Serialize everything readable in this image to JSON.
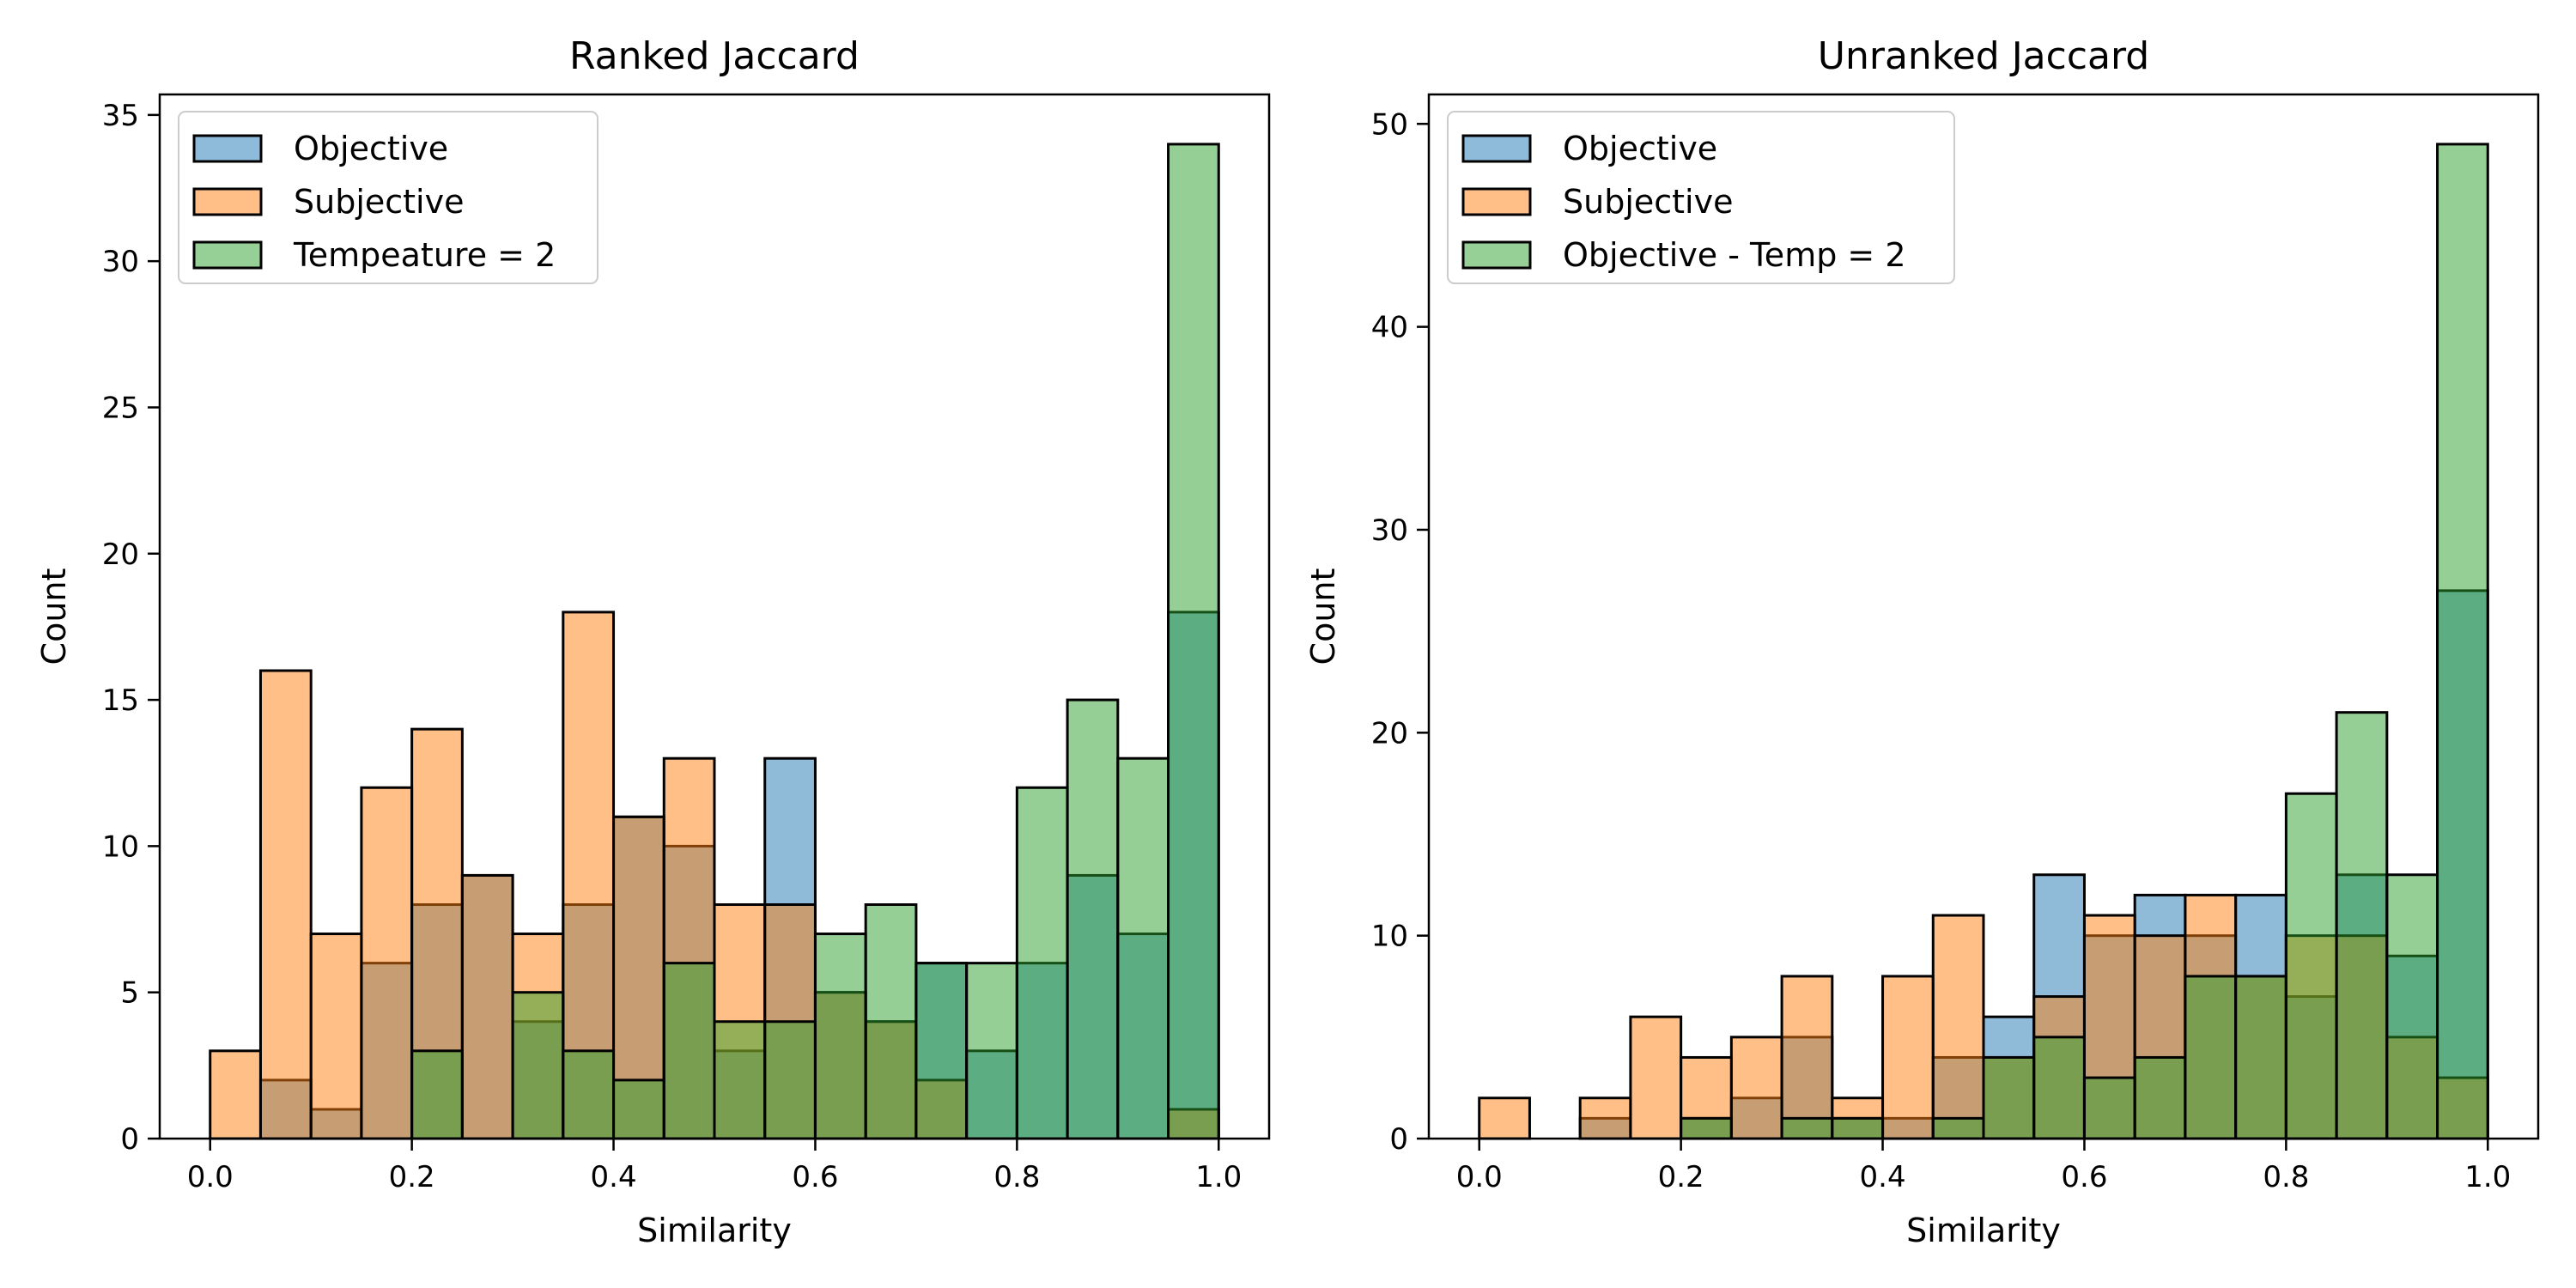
{
  "chart_data": [
    {
      "type": "histogram",
      "title": "Ranked Jaccard",
      "xlabel": "Similarity",
      "ylabel": "Count",
      "xlim": [
        -0.05,
        1.05
      ],
      "ylim": [
        0,
        35.7
      ],
      "xticks": [
        0.0,
        0.2,
        0.4,
        0.6,
        0.8,
        1.0
      ],
      "yticks": [
        0,
        5,
        10,
        15,
        20,
        25,
        30,
        35
      ],
      "bin_edges": [
        0.0,
        0.05,
        0.1,
        0.15,
        0.2,
        0.25,
        0.3,
        0.35,
        0.4,
        0.45,
        0.5,
        0.55,
        0.6,
        0.65,
        0.7,
        0.75,
        0.8,
        0.85,
        0.9,
        0.95,
        1.0
      ],
      "legend_position": "upper-left",
      "series": [
        {
          "name": "Objective",
          "color": "#1f77b4",
          "values": [
            0,
            2,
            1,
            6,
            8,
            9,
            4,
            8,
            11,
            10,
            3,
            13,
            5,
            4,
            6,
            3,
            6,
            9,
            7,
            18
          ]
        },
        {
          "name": "Subjective",
          "color": "#ff7f0e",
          "values": [
            3,
            16,
            7,
            12,
            14,
            9,
            7,
            18,
            11,
            13,
            8,
            8,
            5,
            4,
            2,
            0,
            0,
            0,
            0,
            1
          ]
        },
        {
          "name": "Tempeature = 2",
          "color": "#2ca02c",
          "values": [
            0,
            0,
            0,
            0,
            3,
            0,
            5,
            3,
            2,
            6,
            4,
            4,
            7,
            8,
            6,
            6,
            12,
            15,
            13,
            34
          ]
        }
      ]
    },
    {
      "type": "histogram",
      "title": "Unranked Jaccard",
      "xlabel": "Similarity",
      "ylabel": "Count",
      "xlim": [
        -0.05,
        1.05
      ],
      "ylim": [
        0,
        51.45
      ],
      "xticks": [
        0.0,
        0.2,
        0.4,
        0.6,
        0.8,
        1.0
      ],
      "yticks": [
        0,
        10,
        20,
        30,
        40,
        50
      ],
      "bin_edges": [
        0.0,
        0.05,
        0.1,
        0.15,
        0.2,
        0.25,
        0.3,
        0.35,
        0.4,
        0.45,
        0.5,
        0.55,
        0.6,
        0.65,
        0.7,
        0.75,
        0.8,
        0.85,
        0.9,
        0.95,
        1.0
      ],
      "legend_position": "upper-left",
      "series": [
        {
          "name": "Objective",
          "color": "#1f77b4",
          "values": [
            0,
            0,
            1,
            0,
            1,
            2,
            5,
            1,
            1,
            4,
            6,
            13,
            10,
            12,
            10,
            12,
            7,
            13,
            9,
            27
          ]
        },
        {
          "name": "Subjective",
          "color": "#ff7f0e",
          "values": [
            2,
            0,
            2,
            6,
            4,
            5,
            8,
            2,
            8,
            11,
            4,
            7,
            11,
            10,
            12,
            8,
            10,
            10,
            5,
            3
          ]
        },
        {
          "name": "Objective - Temp = 2",
          "color": "#2ca02c",
          "values": [
            0,
            0,
            0,
            0,
            1,
            0,
            1,
            1,
            0,
            1,
            4,
            5,
            3,
            4,
            8,
            8,
            17,
            21,
            13,
            49
          ]
        }
      ]
    }
  ]
}
